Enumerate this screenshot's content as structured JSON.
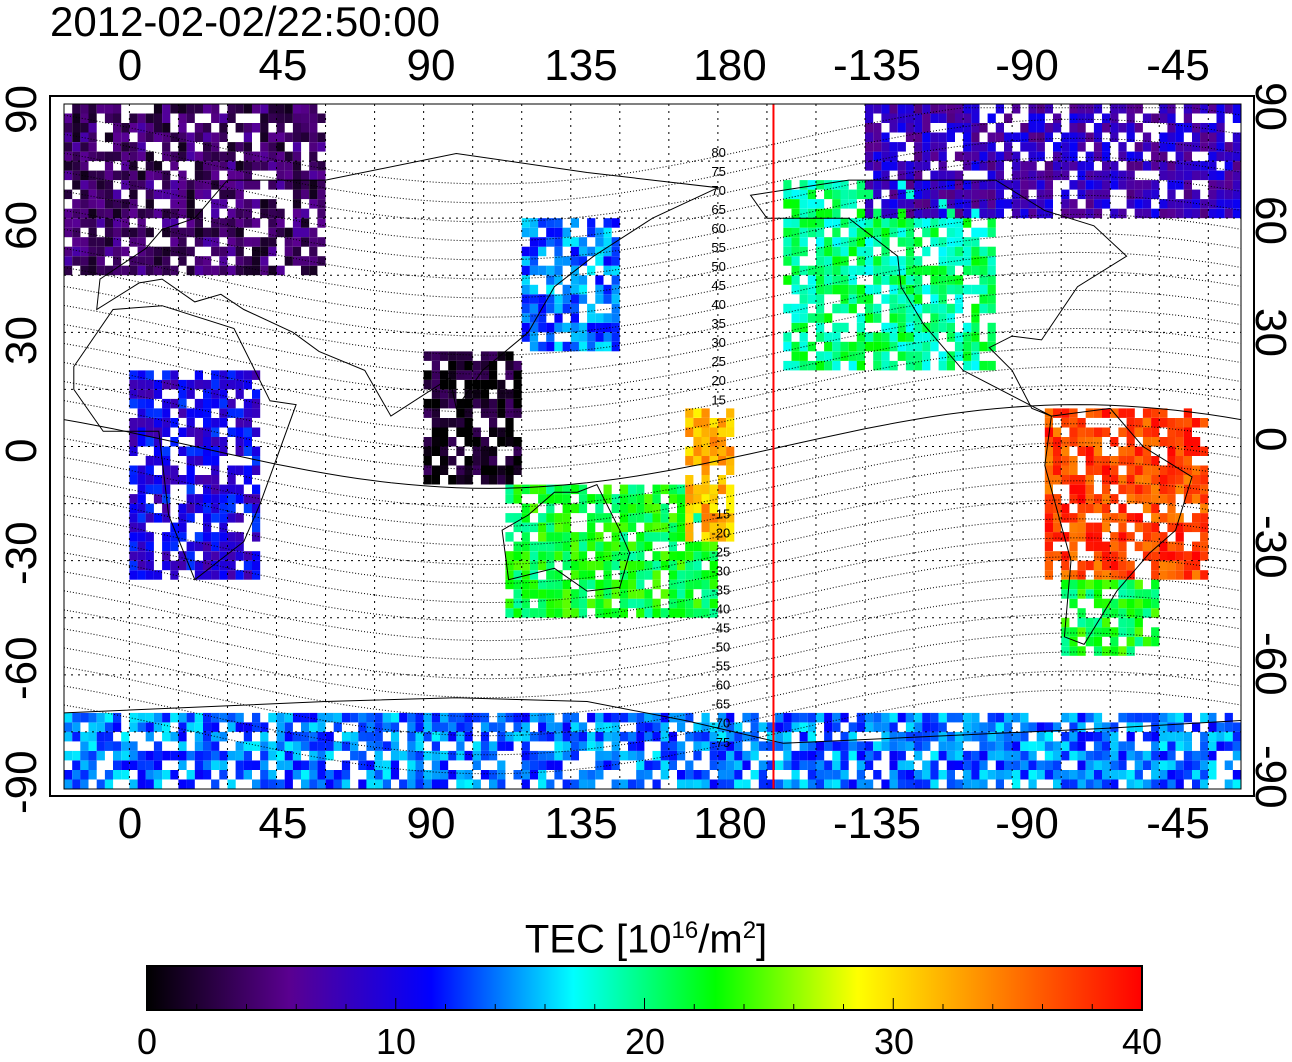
{
  "timestamp": "2012-02-02/22:50:00",
  "x_ticks": [
    "0",
    "45",
    "90",
    "135",
    "180",
    "-135",
    "-90",
    "-45"
  ],
  "y_ticks": [
    "90",
    "60",
    "30",
    "0",
    "-30",
    "-60",
    "-90"
  ],
  "colorbar": {
    "title_main": "TEC  [10",
    "title_sup1": "16",
    "title_mid": "/m",
    "title_sup2": "2",
    "title_end": "]",
    "ticks": [
      "0",
      "10",
      "20",
      "30",
      "40"
    ],
    "range": [
      0,
      40
    ],
    "colors": [
      "#000000",
      "#5a0090",
      "#0000ff",
      "#00ffff",
      "#00ff00",
      "#ffff00",
      "#ff7f00",
      "#ff0000"
    ]
  },
  "map": {
    "lon_range": [
      -20,
      340
    ],
    "lat_range": [
      -90,
      90
    ],
    "terminator_lon": 197,
    "terminator_color": "#ff0000",
    "grid_step_deg": 15,
    "mlat_labels_north": [
      "80",
      "75",
      "70",
      "65",
      "60",
      "55",
      "50",
      "45",
      "40",
      "35",
      "30",
      "25",
      "20",
      "15"
    ],
    "mlat_labels_south": [
      "-15",
      "-20",
      "-25",
      "-30",
      "-35",
      "-40",
      "-45",
      "-50",
      "-55",
      "-60",
      "-65",
      "-70",
      "-75"
    ]
  },
  "chart_data": {
    "type": "heatmap",
    "title": "2012-02-02/22:50:00",
    "xlabel": "",
    "ylabel": "",
    "xlim": [
      -20,
      340
    ],
    "ylim": [
      -90,
      90
    ],
    "colorbar_label": "TEC [10^16/m^2]",
    "value_range": [
      0,
      40
    ],
    "regions": [
      {
        "lon": [
          -20,
          60
        ],
        "lat": [
          45,
          90
        ],
        "tec": 4
      },
      {
        "lon": [
          0,
          40
        ],
        "lat": [
          -35,
          20
        ],
        "tec": 10
      },
      {
        "lon": [
          90,
          120
        ],
        "lat": [
          -10,
          25
        ],
        "tec": 1
      },
      {
        "lon": [
          120,
          150
        ],
        "lat": [
          25,
          60
        ],
        "tec": 14
      },
      {
        "lon": [
          115,
          180
        ],
        "lat": [
          -45,
          -10
        ],
        "tec": 22
      },
      {
        "lon": [
          170,
          185
        ],
        "lat": [
          -25,
          10
        ],
        "tec": 32
      },
      {
        "lon": [
          200,
          265
        ],
        "lat": [
          20,
          70
        ],
        "tec": 20
      },
      {
        "lon": [
          280,
          330
        ],
        "lat": [
          -35,
          10
        ],
        "tec": 37
      },
      {
        "lon": [
          285,
          315
        ],
        "lat": [
          -55,
          -35
        ],
        "tec": 22
      },
      {
        "lon": [
          225,
          340
        ],
        "lat": [
          60,
          90
        ],
        "tec": 8
      },
      {
        "lon": [
          -20,
          340
        ],
        "lat": [
          -90,
          -70
        ],
        "tec": 14
      }
    ]
  }
}
